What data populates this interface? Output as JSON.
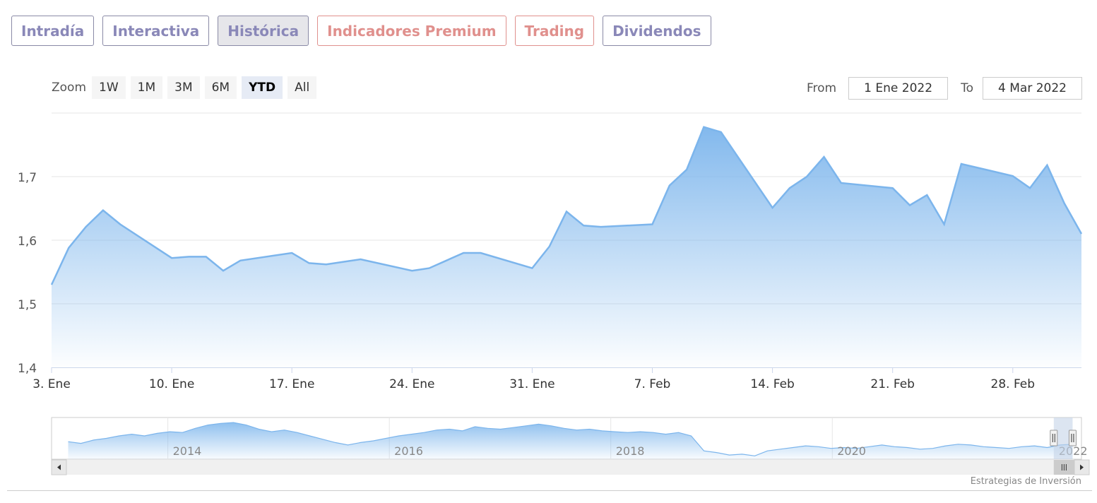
{
  "tabs": [
    {
      "label": "Intradía",
      "color": "purple",
      "active": false
    },
    {
      "label": "Interactiva",
      "color": "purple",
      "active": false
    },
    {
      "label": "Histórica",
      "color": "purple",
      "active": true
    },
    {
      "label": "Indicadores Premium",
      "color": "red",
      "active": false
    },
    {
      "label": "Trading",
      "color": "red",
      "active": false
    },
    {
      "label": "Dividendos",
      "color": "purple",
      "active": false
    }
  ],
  "range_selector": {
    "zoom_label": "Zoom",
    "buttons": [
      {
        "label": "1W",
        "selected": false
      },
      {
        "label": "1M",
        "selected": false
      },
      {
        "label": "3M",
        "selected": false
      },
      {
        "label": "6M",
        "selected": false
      },
      {
        "label": "YTD",
        "selected": true
      },
      {
        "label": "All",
        "selected": false
      }
    ],
    "from_label": "From",
    "from_value": "1 Ene 2022",
    "to_label": "To",
    "to_value": "4 Mar 2022"
  },
  "chart_data": {
    "type": "area",
    "x": [
      "2022-01-03",
      "2022-01-04",
      "2022-01-05",
      "2022-01-06",
      "2022-01-07",
      "2022-01-10",
      "2022-01-11",
      "2022-01-12",
      "2022-01-13",
      "2022-01-14",
      "2022-01-17",
      "2022-01-18",
      "2022-01-19",
      "2022-01-20",
      "2022-01-21",
      "2022-01-24",
      "2022-01-25",
      "2022-01-26",
      "2022-01-27",
      "2022-01-28",
      "2022-01-31",
      "2022-02-01",
      "2022-02-02",
      "2022-02-03",
      "2022-02-04",
      "2022-02-07",
      "2022-02-08",
      "2022-02-09",
      "2022-02-10",
      "2022-02-11",
      "2022-02-14",
      "2022-02-15",
      "2022-02-16",
      "2022-02-17",
      "2022-02-18",
      "2022-02-21",
      "2022-02-22",
      "2022-02-23",
      "2022-02-24",
      "2022-02-25",
      "2022-02-28",
      "2022-03-01",
      "2022-03-02",
      "2022-03-03",
      "2022-03-04"
    ],
    "values": [
      1.53,
      1.588,
      1.621,
      1.647,
      1.625,
      1.572,
      1.574,
      1.574,
      1.552,
      1.568,
      1.58,
      1.564,
      1.562,
      1.566,
      1.57,
      1.552,
      1.556,
      1.568,
      1.58,
      1.58,
      1.556,
      1.59,
      1.645,
      1.623,
      1.621,
      1.625,
      1.686,
      1.711,
      1.778,
      1.77,
      1.651,
      1.682,
      1.7,
      1.731,
      1.69,
      1.682,
      1.655,
      1.671,
      1.625,
      1.72,
      1.701,
      1.682,
      1.718,
      1.658,
      1.61
    ],
    "x_start": "2022-01-03",
    "x_end": "2022-03-04",
    "ylim": [
      1.4,
      1.8
    ],
    "yticks": [
      "1,4",
      "1,5",
      "1,6",
      "1,7"
    ],
    "ytick_values": [
      1.4,
      1.5,
      1.6,
      1.7
    ],
    "xticks": [
      "3. Ene",
      "10. Ene",
      "17. Ene",
      "24. Ene",
      "31. Ene",
      "7. Feb",
      "14. Feb",
      "21. Feb",
      "28. Feb"
    ],
    "xtick_dates": [
      "2022-01-03",
      "2022-01-10",
      "2022-01-17",
      "2022-01-24",
      "2022-01-31",
      "2022-02-07",
      "2022-02-14",
      "2022-02-21",
      "2022-02-28"
    ],
    "grid": true,
    "colors": {
      "line": "#7cb5ec",
      "fill_top": "#7cb5ec",
      "fill_bottom": "#ffffff",
      "grid": "#e6e6e6"
    }
  },
  "navigator": {
    "labels": [
      "2014",
      "2016",
      "2018",
      "2020",
      "2022"
    ],
    "label_years": [
      2014,
      2016,
      2018,
      2020,
      2022
    ],
    "x_start_year": 2012.95,
    "x_end_year": 2022.25,
    "series_year_start": 2013.1,
    "series_year_end": 2022.17,
    "series": [
      1.51,
      1.49,
      1.53,
      1.55,
      1.58,
      1.6,
      1.58,
      1.61,
      1.63,
      1.62,
      1.67,
      1.71,
      1.73,
      1.74,
      1.71,
      1.66,
      1.63,
      1.65,
      1.62,
      1.58,
      1.54,
      1.5,
      1.47,
      1.5,
      1.52,
      1.55,
      1.58,
      1.6,
      1.62,
      1.65,
      1.66,
      1.64,
      1.69,
      1.67,
      1.66,
      1.68,
      1.7,
      1.72,
      1.7,
      1.67,
      1.65,
      1.66,
      1.64,
      1.63,
      1.62,
      1.63,
      1.62,
      1.6,
      1.62,
      1.58,
      1.4,
      1.38,
      1.35,
      1.36,
      1.34,
      1.4,
      1.42,
      1.44,
      1.46,
      1.45,
      1.43,
      1.44,
      1.43,
      1.45,
      1.47,
      1.45,
      1.44,
      1.42,
      1.43,
      1.46,
      1.48,
      1.47,
      1.45,
      1.44,
      1.43,
      1.45,
      1.46,
      1.44,
      1.47,
      1.48
    ],
    "ylim": [
      1.3,
      1.8
    ]
  },
  "credit": "Estrategias de Inversión"
}
